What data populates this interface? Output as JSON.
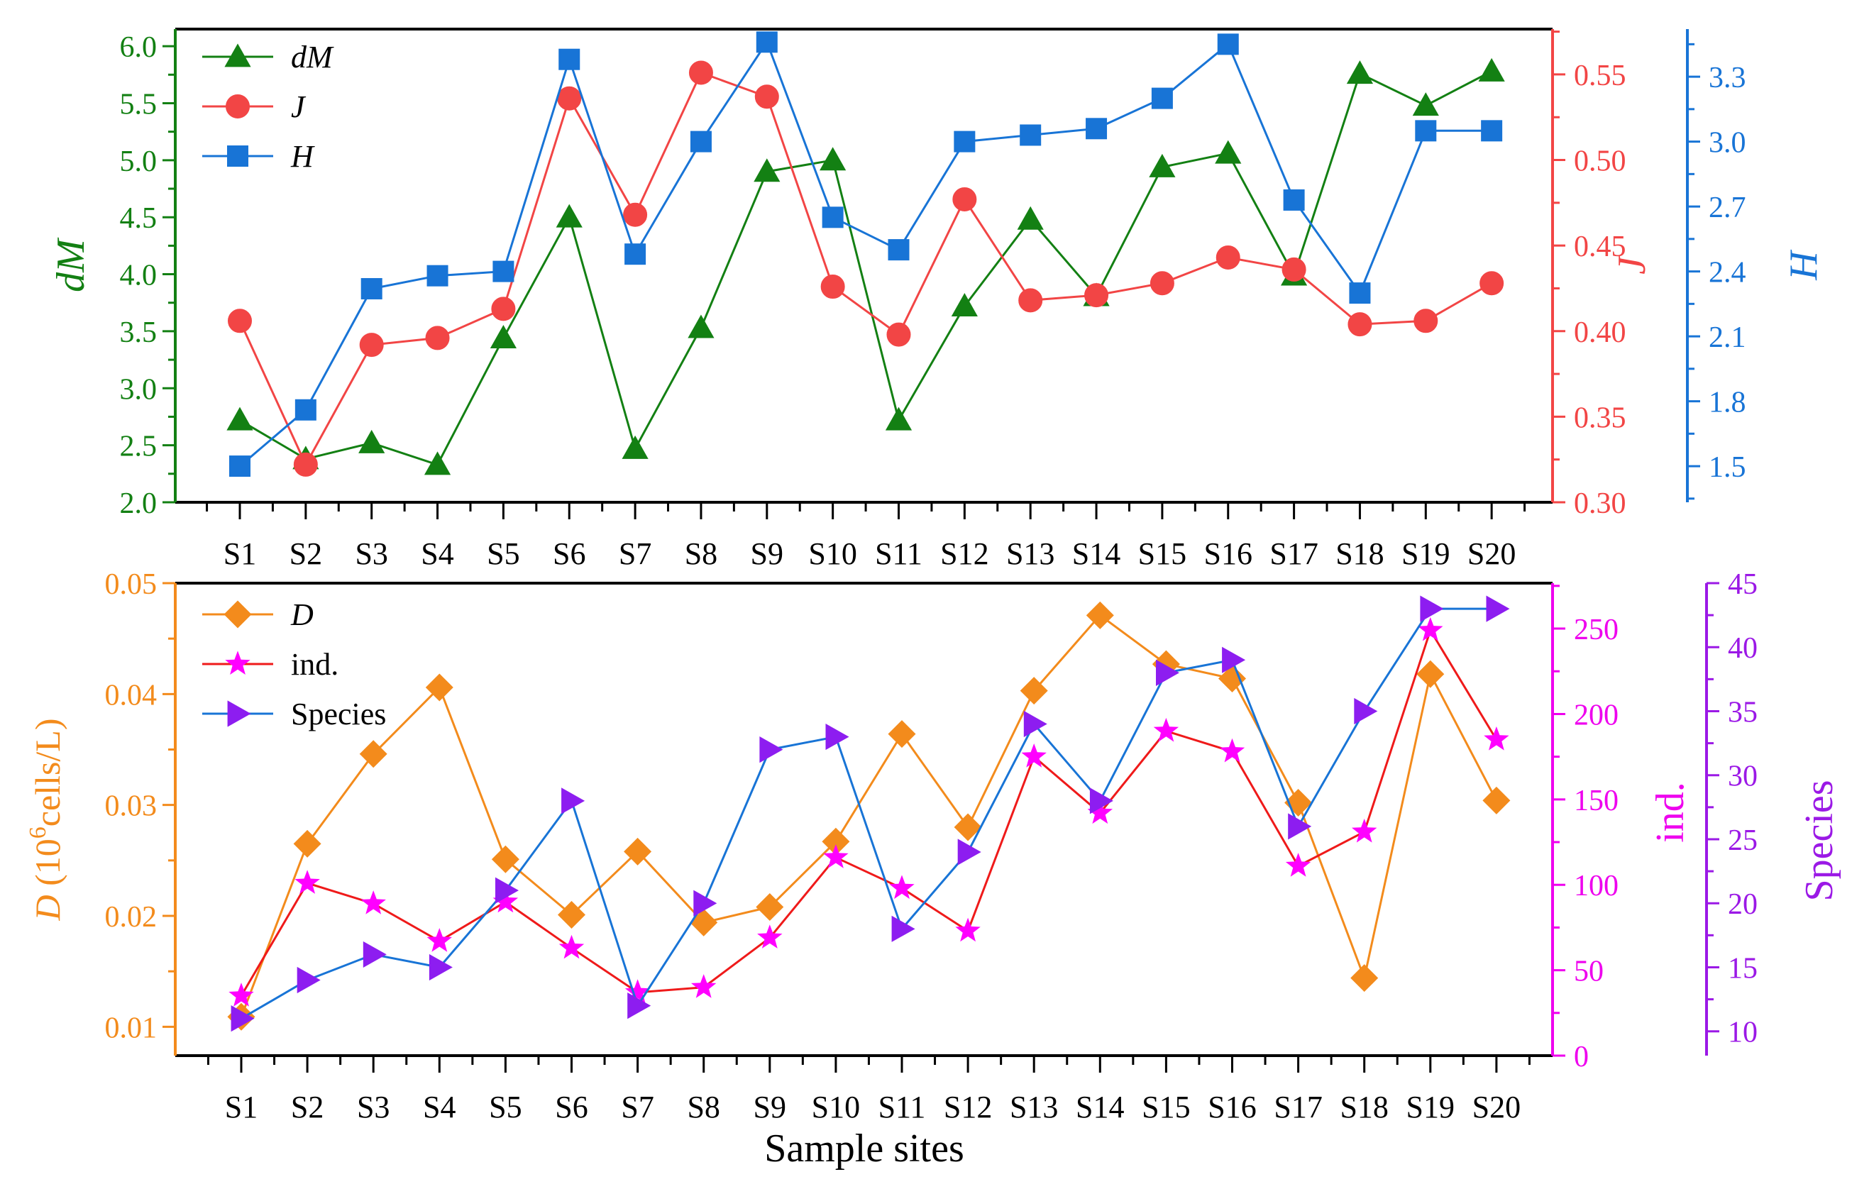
{
  "chart_data": [
    {
      "type": "line",
      "panel": "top",
      "categories": [
        "S1",
        "S2",
        "S3",
        "S4",
        "S5",
        "S6",
        "S7",
        "S8",
        "S9",
        "S10",
        "S11",
        "S12",
        "S13",
        "S14",
        "S15",
        "S16",
        "S17",
        "S18",
        "S19",
        "S20"
      ],
      "series": [
        {
          "name": "dM",
          "axis": "left",
          "color": "#138013",
          "marker": "triangle",
          "values": [
            2.72,
            2.38,
            2.52,
            2.33,
            3.44,
            4.5,
            2.47,
            3.53,
            4.9,
            5.0,
            2.72,
            3.72,
            4.48,
            3.81,
            4.94,
            5.06,
            3.99,
            5.76,
            5.48,
            5.78
          ]
        },
        {
          "name": "J",
          "axis": "right1",
          "color": "#f24545",
          "marker": "circle",
          "values": [
            0.406,
            0.322,
            0.392,
            0.396,
            0.413,
            0.536,
            0.468,
            0.551,
            0.537,
            0.426,
            0.398,
            0.477,
            0.418,
            0.421,
            0.428,
            0.443,
            0.436,
            0.404,
            0.406,
            0.428
          ]
        },
        {
          "name": "H",
          "axis": "right2",
          "color": "#1874d6",
          "marker": "square",
          "values": [
            1.5,
            1.76,
            2.32,
            2.38,
            2.4,
            3.38,
            2.48,
            3.0,
            3.46,
            2.65,
            2.5,
            3.0,
            3.03,
            3.06,
            3.2,
            3.45,
            2.73,
            2.3,
            3.05,
            3.05
          ]
        }
      ],
      "axes": {
        "left": {
          "label": "dM",
          "range": [
            2.0,
            6.15
          ],
          "ticks": [
            "2.0",
            "2.5",
            "3.0",
            "3.5",
            "4.0",
            "4.5",
            "5.0",
            "5.5",
            "6.0"
          ],
          "color": "#138013"
        },
        "right1": {
          "label": "J",
          "range": [
            0.3,
            0.5765
          ],
          "ticks": [
            "0.30",
            "0.35",
            "0.40",
            "0.45",
            "0.50",
            "0.55"
          ],
          "color": "#f24545"
        },
        "right2": {
          "label": "H",
          "range": [
            1.333,
            3.52
          ],
          "ticks": [
            "1.5",
            "1.8",
            "2.1",
            "2.4",
            "2.7",
            "3.0",
            "3.3"
          ],
          "color": "#1874d6"
        }
      },
      "legend": {
        "position": "top-left",
        "entries": [
          "dM",
          "J",
          "H"
        ]
      }
    },
    {
      "type": "line",
      "panel": "bottom",
      "categories": [
        "S1",
        "S2",
        "S3",
        "S4",
        "S5",
        "S6",
        "S7",
        "S8",
        "S9",
        "S10",
        "S11",
        "S12",
        "S13",
        "S14",
        "S15",
        "S16",
        "S17",
        "S18",
        "S19",
        "S20"
      ],
      "xlabel": "Sample sites",
      "series": [
        {
          "name": "D",
          "axis": "left",
          "color": "#f38b1c",
          "marker": "diamond",
          "values": [
            0.0109,
            0.0265,
            0.0346,
            0.0406,
            0.0251,
            0.0201,
            0.0258,
            0.0194,
            0.0208,
            0.0267,
            0.0364,
            0.028,
            0.0403,
            0.0471,
            0.0427,
            0.0414,
            0.0302,
            0.0144,
            0.0418,
            0.0304
          ]
        },
        {
          "name": "ind.",
          "axis": "right1",
          "color": "#ef1a1a",
          "marker": "star",
          "values": [
            35,
            101,
            89,
            67,
            90,
            63,
            37,
            40,
            69,
            116,
            98,
            73,
            175,
            142,
            190,
            178,
            111,
            131,
            249,
            185
          ]
        },
        {
          "name": "Species",
          "axis": "right2",
          "color": "#1874d6",
          "marker": "triangle-right",
          "values": [
            11,
            14,
            16,
            15,
            21,
            28,
            12,
            20,
            32,
            33,
            18,
            24,
            34,
            28,
            38,
            39,
            26,
            35,
            43,
            43
          ]
        }
      ],
      "axes": {
        "left": {
          "label_italic": "D",
          "label_open": " (10",
          "label_sup": "6",
          "label_rest": "cells/L)",
          "range": [
            0.0074,
            0.05
          ],
          "ticks": [
            "0.01",
            "0.02",
            "0.03",
            "0.04",
            "0.05"
          ],
          "color": "#f38b1c"
        },
        "right1": {
          "label": "ind.",
          "range": [
            0,
            276.6
          ],
          "ticks": [
            "0",
            "50",
            "100",
            "150",
            "200",
            "250"
          ],
          "color": "#ee00ee"
        },
        "right2": {
          "label": "Species",
          "range": [
            8.1,
            45
          ],
          "ticks": [
            "10",
            "15",
            "20",
            "25",
            "30",
            "35",
            "40",
            "45"
          ],
          "color": "#9b19e6"
        }
      },
      "legend": {
        "position": "top-left",
        "entries": [
          "D",
          "ind.",
          "Species"
        ]
      }
    }
  ]
}
